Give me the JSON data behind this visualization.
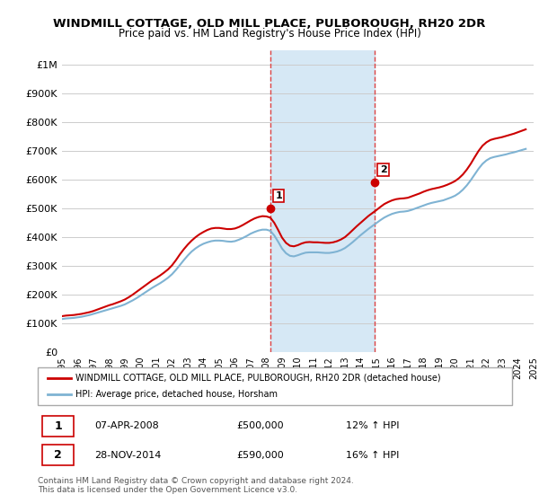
{
  "title": "WINDMILL COTTAGE, OLD MILL PLACE, PULBOROUGH, RH20 2DR",
  "subtitle": "Price paid vs. HM Land Registry's House Price Index (HPI)",
  "ylim": [
    0,
    1050000
  ],
  "yticks": [
    0,
    100000,
    200000,
    300000,
    400000,
    500000,
    600000,
    700000,
    800000,
    900000,
    1000000
  ],
  "ytick_labels": [
    "£0",
    "£100K",
    "£200K",
    "£300K",
    "£400K",
    "£500K",
    "£600K",
    "£700K",
    "£800K",
    "£900K",
    "£1M"
  ],
  "x_start_year": 1995,
  "x_end_year": 2025,
  "sale1_year": 2008.27,
  "sale1_price": 500000,
  "sale2_year": 2014.91,
  "sale2_price": 590000,
  "legend_label_red": "WINDMILL COTTAGE, OLD MILL PLACE, PULBOROUGH, RH20 2DR (detached house)",
  "legend_label_blue": "HPI: Average price, detached house, Horsham",
  "note1_num": "1",
  "note1_date": "07-APR-2008",
  "note1_price": "£500,000",
  "note1_hpi": "12% ↑ HPI",
  "note2_num": "2",
  "note2_date": "28-NOV-2014",
  "note2_price": "£590,000",
  "note2_hpi": "16% ↑ HPI",
  "footer": "Contains HM Land Registry data © Crown copyright and database right 2024.\nThis data is licensed under the Open Government Licence v3.0.",
  "red_color": "#cc0000",
  "blue_color": "#7fb3d3",
  "highlight_color": "#d6e8f5",
  "vline_color": "#dd4444",
  "grid_color": "#cccccc",
  "hpi_red_line": {
    "years": [
      1995.0,
      1995.25,
      1995.5,
      1995.75,
      1996.0,
      1996.25,
      1996.5,
      1996.75,
      1997.0,
      1997.25,
      1997.5,
      1997.75,
      1998.0,
      1998.25,
      1998.5,
      1998.75,
      1999.0,
      1999.25,
      1999.5,
      1999.75,
      2000.0,
      2000.25,
      2000.5,
      2000.75,
      2001.0,
      2001.25,
      2001.5,
      2001.75,
      2002.0,
      2002.25,
      2002.5,
      2002.75,
      2003.0,
      2003.25,
      2003.5,
      2003.75,
      2004.0,
      2004.25,
      2004.5,
      2004.75,
      2005.0,
      2005.25,
      2005.5,
      2005.75,
      2006.0,
      2006.25,
      2006.5,
      2006.75,
      2007.0,
      2007.25,
      2007.5,
      2007.75,
      2008.0,
      2008.25,
      2008.5,
      2008.75,
      2009.0,
      2009.25,
      2009.5,
      2009.75,
      2010.0,
      2010.25,
      2010.5,
      2010.75,
      2011.0,
      2011.25,
      2011.5,
      2011.75,
      2012.0,
      2012.25,
      2012.5,
      2012.75,
      2013.0,
      2013.25,
      2013.5,
      2013.75,
      2014.0,
      2014.25,
      2014.5,
      2014.75,
      2015.0,
      2015.25,
      2015.5,
      2015.75,
      2016.0,
      2016.25,
      2016.5,
      2016.75,
      2017.0,
      2017.25,
      2017.5,
      2017.75,
      2018.0,
      2018.25,
      2018.5,
      2018.75,
      2019.0,
      2019.25,
      2019.5,
      2019.75,
      2020.0,
      2020.25,
      2020.5,
      2020.75,
      2021.0,
      2021.25,
      2021.5,
      2021.75,
      2022.0,
      2022.25,
      2022.5,
      2022.75,
      2023.0,
      2023.25,
      2023.5,
      2023.75,
      2024.0,
      2024.25,
      2024.5
    ],
    "values": [
      125000,
      127000,
      128000,
      129000,
      131000,
      133000,
      136000,
      139000,
      143000,
      148000,
      153000,
      158000,
      163000,
      167000,
      172000,
      177000,
      183000,
      191000,
      200000,
      210000,
      220000,
      230000,
      240000,
      250000,
      258000,
      267000,
      277000,
      288000,
      302000,
      320000,
      340000,
      358000,
      374000,
      388000,
      400000,
      410000,
      418000,
      425000,
      430000,
      432000,
      432000,
      430000,
      428000,
      428000,
      430000,
      435000,
      442000,
      450000,
      458000,
      465000,
      470000,
      473000,
      472000,
      468000,
      450000,
      425000,
      398000,
      380000,
      370000,
      368000,
      372000,
      378000,
      382000,
      383000,
      382000,
      382000,
      381000,
      380000,
      380000,
      382000,
      386000,
      392000,
      400000,
      412000,
      425000,
      438000,
      450000,
      462000,
      474000,
      484000,
      494000,
      505000,
      515000,
      522000,
      528000,
      532000,
      534000,
      535000,
      537000,
      542000,
      547000,
      552000,
      558000,
      563000,
      567000,
      570000,
      573000,
      577000,
      582000,
      588000,
      595000,
      605000,
      618000,
      635000,
      655000,
      678000,
      700000,
      718000,
      730000,
      738000,
      742000,
      745000,
      748000,
      752000,
      756000,
      760000,
      765000,
      770000,
      775000
    ]
  },
  "hpi_blue_line": {
    "years": [
      1995.0,
      1995.25,
      1995.5,
      1995.75,
      1996.0,
      1996.25,
      1996.5,
      1996.75,
      1997.0,
      1997.25,
      1997.5,
      1997.75,
      1998.0,
      1998.25,
      1998.5,
      1998.75,
      1999.0,
      1999.25,
      1999.5,
      1999.75,
      2000.0,
      2000.25,
      2000.5,
      2000.75,
      2001.0,
      2001.25,
      2001.5,
      2001.75,
      2002.0,
      2002.25,
      2002.5,
      2002.75,
      2003.0,
      2003.25,
      2003.5,
      2003.75,
      2004.0,
      2004.25,
      2004.5,
      2004.75,
      2005.0,
      2005.25,
      2005.5,
      2005.75,
      2006.0,
      2006.25,
      2006.5,
      2006.75,
      2007.0,
      2007.25,
      2007.5,
      2007.75,
      2008.0,
      2008.25,
      2008.5,
      2008.75,
      2009.0,
      2009.25,
      2009.5,
      2009.75,
      2010.0,
      2010.25,
      2010.5,
      2010.75,
      2011.0,
      2011.25,
      2011.5,
      2011.75,
      2012.0,
      2012.25,
      2012.5,
      2012.75,
      2013.0,
      2013.25,
      2013.5,
      2013.75,
      2014.0,
      2014.25,
      2014.5,
      2014.75,
      2015.0,
      2015.25,
      2015.5,
      2015.75,
      2016.0,
      2016.25,
      2016.5,
      2016.75,
      2017.0,
      2017.25,
      2017.5,
      2017.75,
      2018.0,
      2018.25,
      2018.5,
      2018.75,
      2019.0,
      2019.25,
      2019.5,
      2019.75,
      2020.0,
      2020.25,
      2020.5,
      2020.75,
      2021.0,
      2021.25,
      2021.5,
      2021.75,
      2022.0,
      2022.25,
      2022.5,
      2022.75,
      2023.0,
      2023.25,
      2023.5,
      2023.75,
      2024.0,
      2024.25,
      2024.5
    ],
    "values": [
      115000,
      117000,
      118000,
      119000,
      121000,
      123000,
      126000,
      129000,
      133000,
      137000,
      141000,
      145000,
      149000,
      153000,
      157000,
      161000,
      166000,
      173000,
      180000,
      188000,
      197000,
      206000,
      215000,
      224000,
      232000,
      240000,
      249000,
      259000,
      271000,
      286000,
      303000,
      320000,
      336000,
      350000,
      361000,
      370000,
      377000,
      382000,
      386000,
      388000,
      388000,
      387000,
      385000,
      384000,
      386000,
      391000,
      397000,
      404000,
      412000,
      418000,
      423000,
      426000,
      426000,
      422000,
      406000,
      384000,
      360000,
      344000,
      335000,
      333000,
      337000,
      342000,
      346000,
      347000,
      347000,
      347000,
      346000,
      345000,
      345000,
      347000,
      350000,
      355000,
      362000,
      372000,
      383000,
      395000,
      407000,
      418000,
      429000,
      439000,
      449000,
      459000,
      468000,
      475000,
      481000,
      485000,
      488000,
      489000,
      491000,
      495000,
      500000,
      505000,
      510000,
      515000,
      519000,
      522000,
      525000,
      528000,
      533000,
      538000,
      544000,
      553000,
      565000,
      580000,
      598000,
      618000,
      638000,
      655000,
      667000,
      675000,
      679000,
      682000,
      685000,
      688000,
      692000,
      695000,
      699000,
      703000,
      707000
    ]
  }
}
